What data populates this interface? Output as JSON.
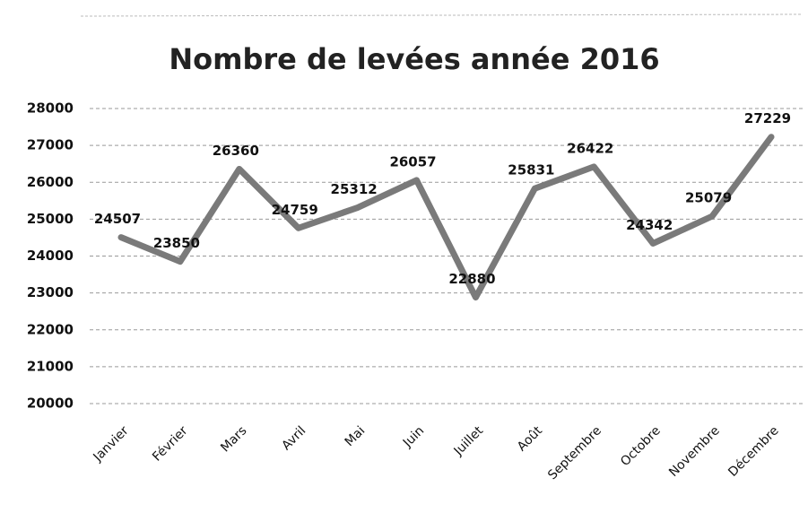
{
  "chart_data": {
    "type": "line",
    "title": "Nombre de levées année 2016",
    "categories": [
      "Janvier",
      "Février",
      "Mars",
      "Avril",
      "Mai",
      "Juin",
      "Juillet",
      "Août",
      "Septembre",
      "Octobre",
      "Novembre",
      "Décembre"
    ],
    "series": [
      {
        "name": "Nombre de levées",
        "color": "#7a7a7a",
        "values": [
          24507,
          23850,
          26360,
          24759,
          25312,
          26057,
          22880,
          25831,
          26422,
          24342,
          25079,
          27229
        ]
      }
    ],
    "ylim": [
      20000,
      28000
    ],
    "yticks": [
      20000,
      21000,
      22000,
      23000,
      24000,
      25000,
      26000,
      27000,
      28000
    ],
    "grid": true
  }
}
